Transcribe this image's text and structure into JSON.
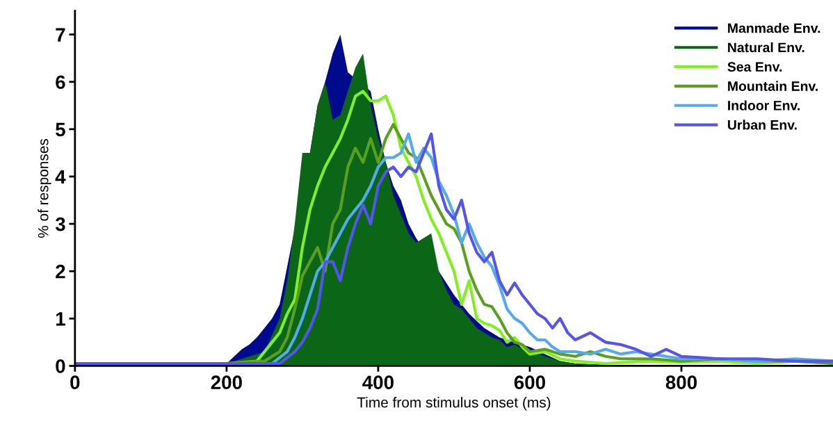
{
  "chart_data": {
    "type": "line",
    "xlabel": "Time from stimulus onset (ms)",
    "ylabel": "% of responses",
    "xlim": [
      0,
      1000
    ],
    "ylim": [
      0,
      7.5
    ],
    "xticks": [
      0,
      200,
      400,
      600,
      800
    ],
    "yticks": [
      0,
      1,
      2,
      3,
      4,
      5,
      6,
      7
    ],
    "grid": false,
    "legend": "top right",
    "series": [
      {
        "name": "Manmade Env.",
        "type": "area",
        "color": "#000a8c",
        "x": [
          0,
          100,
          200,
          210,
          220,
          230,
          240,
          250,
          260,
          270,
          280,
          290,
          300,
          310,
          320,
          330,
          340,
          350,
          360,
          370,
          380,
          390,
          400,
          410,
          420,
          430,
          440,
          450,
          460,
          470,
          480,
          500,
          520,
          540,
          560,
          580,
          600,
          620,
          640,
          660,
          700,
          800,
          900,
          1000
        ],
        "values": [
          0.05,
          0.05,
          0.05,
          0.2,
          0.35,
          0.45,
          0.6,
          0.8,
          1.0,
          1.3,
          2.1,
          null,
          null,
          4.5,
          5.5,
          6.0,
          6.6,
          7.0,
          6.2,
          null,
          null,
          5.8,
          5.0,
          4.3,
          3.8,
          3.5,
          3.0,
          2.7,
          null,
          null,
          2.0,
          1.5,
          1.1,
          0.8,
          0.6,
          0.5,
          0.4,
          0.25,
          0.1,
          0.05,
          0.02,
          0.02,
          0.02,
          0.02
        ]
      },
      {
        "name": "Natural Env.",
        "type": "area",
        "color": "#0b6618",
        "x": [
          0,
          100,
          200,
          250,
          270,
          280,
          290,
          300,
          310,
          320,
          330,
          340,
          350,
          360,
          370,
          380,
          390,
          400,
          410,
          420,
          430,
          440,
          450,
          460,
          470,
          480,
          490,
          500,
          510,
          520,
          530,
          540,
          550,
          560,
          570,
          580,
          590,
          600,
          620,
          640,
          660,
          700,
          800,
          900,
          1000
        ],
        "values": [
          0.05,
          0.05,
          0.05,
          0.3,
          1.0,
          1.8,
          3.0,
          4.5,
          4.5,
          5.5,
          6.0,
          5.2,
          5.3,
          5.8,
          6.3,
          6.6,
          5.5,
          4.8,
          4.3,
          3.6,
          3.2,
          2.8,
          2.6,
          2.7,
          2.8,
          2.0,
          1.6,
          1.3,
          1.2,
          1.0,
          0.8,
          0.7,
          0.6,
          0.55,
          0.4,
          0.45,
          0.35,
          0.3,
          0.2,
          0.1,
          0.05,
          0.02,
          0.02,
          0.02,
          0.02
        ]
      },
      {
        "name": "Sea Env.",
        "color": "#80f020",
        "x": [
          200,
          240,
          260,
          270,
          280,
          290,
          300,
          310,
          320,
          330,
          340,
          350,
          360,
          370,
          380,
          390,
          400,
          410,
          420,
          430,
          440,
          450,
          460,
          470,
          480,
          490,
          500,
          510,
          520,
          530,
          540,
          550,
          560,
          570,
          580,
          590,
          600,
          620,
          640,
          660,
          700,
          750,
          800,
          850,
          900,
          950,
          1000
        ],
        "values": [
          0.05,
          0.1,
          0.5,
          0.7,
          1.1,
          1.4,
          2.5,
          3.3,
          3.8,
          4.2,
          4.5,
          4.8,
          5.2,
          5.7,
          5.8,
          5.6,
          5.6,
          5.7,
          5.3,
          4.6,
          4.3,
          4.0,
          3.5,
          3.1,
          2.8,
          2.4,
          2.0,
          1.3,
          1.8,
          1.0,
          0.9,
          0.85,
          0.75,
          0.5,
          0.6,
          0.4,
          0.25,
          0.3,
          0.15,
          0.1,
          0.05,
          0.1,
          0.08,
          0.1,
          0.05,
          0.1,
          0.05
        ]
      },
      {
        "name": "Mountain Env.",
        "color": "#5aa01e",
        "x": [
          0,
          100,
          200,
          250,
          270,
          280,
          290,
          300,
          310,
          320,
          330,
          340,
          350,
          360,
          370,
          380,
          390,
          400,
          410,
          420,
          430,
          440,
          450,
          460,
          470,
          480,
          490,
          500,
          510,
          520,
          530,
          540,
          550,
          560,
          570,
          580,
          590,
          600,
          620,
          640,
          660,
          680,
          700,
          720,
          760,
          800,
          850,
          900,
          950,
          1000
        ],
        "values": [
          0.05,
          0.05,
          0.05,
          0.1,
          0.3,
          0.6,
          1.2,
          1.9,
          2.2,
          2.5,
          2.0,
          3.0,
          3.3,
          4.2,
          4.6,
          4.3,
          4.8,
          4.3,
          4.8,
          5.1,
          4.8,
          4.5,
          4.4,
          4.0,
          3.6,
          3.3,
          3.0,
          2.9,
          2.6,
          2.0,
          1.6,
          1.3,
          1.25,
          1.0,
          0.7,
          0.5,
          0.45,
          0.3,
          0.35,
          0.25,
          0.2,
          0.3,
          0.2,
          0.15,
          0.15,
          0.1,
          0.15,
          0.1,
          0.1,
          0.05
        ]
      },
      {
        "name": "Indoor Env.",
        "color": "#55aaee",
        "x": [
          200,
          260,
          280,
          290,
          300,
          310,
          320,
          330,
          340,
          350,
          360,
          370,
          380,
          390,
          400,
          410,
          420,
          430,
          440,
          450,
          460,
          470,
          480,
          490,
          500,
          510,
          520,
          530,
          540,
          550,
          560,
          570,
          580,
          590,
          600,
          610,
          620,
          630,
          640,
          660,
          680,
          700,
          720,
          740,
          760,
          800,
          850,
          900,
          950,
          1000
        ],
        "values": [
          0.05,
          0.05,
          0.3,
          0.6,
          1.0,
          1.5,
          2.0,
          2.2,
          2.5,
          2.8,
          3.1,
          3.3,
          3.5,
          3.8,
          4.2,
          4.4,
          4.4,
          4.5,
          4.9,
          4.3,
          4.6,
          4.4,
          3.9,
          3.6,
          3.2,
          2.6,
          3.0,
          2.6,
          2.3,
          2.1,
          1.7,
          1.2,
          1.0,
          0.9,
          0.7,
          0.55,
          0.55,
          0.4,
          0.3,
          0.3,
          0.25,
          0.35,
          0.25,
          0.3,
          0.25,
          0.15,
          0.15,
          0.1,
          0.15,
          0.1
        ]
      },
      {
        "name": "Urban Env.",
        "color": "#5555ee",
        "x": [
          0,
          100,
          200,
          270,
          290,
          300,
          310,
          320,
          330,
          340,
          350,
          360,
          370,
          380,
          390,
          400,
          410,
          420,
          430,
          440,
          450,
          460,
          470,
          480,
          490,
          500,
          510,
          520,
          530,
          540,
          550,
          560,
          570,
          580,
          590,
          600,
          610,
          620,
          630,
          640,
          650,
          660,
          680,
          700,
          720,
          740,
          760,
          780,
          800,
          850,
          900,
          950,
          1000
        ],
        "values": [
          0.05,
          0.05,
          0.05,
          0.05,
          0.3,
          0.5,
          0.8,
          1.2,
          2.2,
          2.2,
          1.8,
          2.5,
          3.0,
          3.4,
          3.0,
          3.8,
          4.1,
          4.2,
          4.0,
          4.2,
          4.1,
          4.5,
          4.9,
          3.8,
          3.3,
          3.1,
          3.5,
          2.8,
          2.4,
          2.2,
          2.4,
          1.8,
          1.5,
          1.75,
          1.5,
          1.3,
          1.1,
          1.0,
          0.8,
          1.0,
          0.7,
          0.55,
          0.7,
          0.5,
          0.45,
          0.35,
          0.2,
          0.35,
          0.2,
          0.15,
          0.15,
          0.1,
          0.1
        ]
      }
    ]
  }
}
